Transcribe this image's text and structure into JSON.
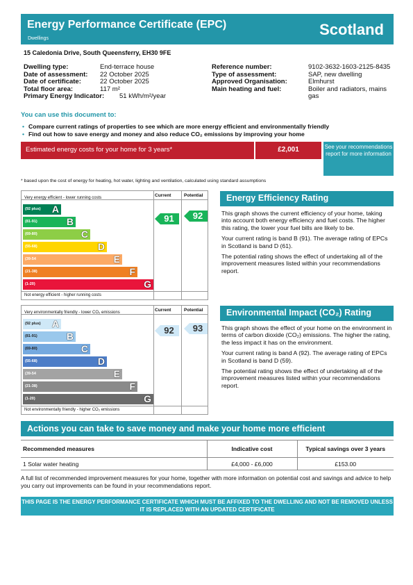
{
  "header": {
    "title": "Energy Performance Certificate (EPC)",
    "subtitle": "Dwellings",
    "country": "Scotland"
  },
  "address": "15 Caledonia Drive, South Queensferry, EH30 9FE",
  "details_left": [
    {
      "k": "Dwelling type:",
      "v": "End-terrace house"
    },
    {
      "k": "Date of assessment:",
      "v": "22 October 2025"
    },
    {
      "k": "Date of certificate:",
      "v": "22 October 2025"
    },
    {
      "k": "Total floor area:",
      "v": "117 m²"
    },
    {
      "k": "Primary Energy Indicator:",
      "v": "51 kWh/m²/year"
    }
  ],
  "details_right": [
    {
      "k": "Reference number:",
      "v": "9102-3632-1603-2125-8435"
    },
    {
      "k": "Type of assessment:",
      "v": "SAP, new dwelling"
    },
    {
      "k": "Approved Organisation:",
      "v": "Elmhurst"
    },
    {
      "k": "Main heating and fuel:",
      "v": "Boiler and radiators, mains gas"
    }
  ],
  "use_title": "You can use this document to:",
  "bullets": [
    "Compare current ratings of properties to see which are more energy efficient and environmentally friendly",
    "Find out how to save energy and money and also reduce CO₂ emissions by improving your home"
  ],
  "cost": {
    "label": "Estimated energy costs for your home for 3 years*",
    "value": "£2,001",
    "see_box": "See your recommendations report for more information"
  },
  "footnote": "* based upon the cost of energy for heating, hot water, lighting and ventilation, calculated using standard assumptions",
  "ee_chart": {
    "top_label": "Very energy efficient - lower running costs",
    "bottom_label": "Not energy efficient - higher running costs",
    "col_current": "Current",
    "col_potential": "Potential",
    "bands": [
      {
        "range": "(92 plus)",
        "letter": "A",
        "color": "#008054"
      },
      {
        "range": "(81-91)",
        "letter": "B",
        "color": "#19b459"
      },
      {
        "range": "(69-80)",
        "letter": "C",
        "color": "#8dce46"
      },
      {
        "range": "(55-68)",
        "letter": "D",
        "color": "#ffd500"
      },
      {
        "range": "(39-54",
        "letter": "E",
        "color": "#fcaa65"
      },
      {
        "range": "(21-38)",
        "letter": "F",
        "color": "#ef8023"
      },
      {
        "range": "(1-20)",
        "letter": "G",
        "color": "#e9153b"
      }
    ],
    "current": "91",
    "potential": "92"
  },
  "ei_chart": {
    "top_label": "Very environmentally friendly - lower CO₂ emissions",
    "bottom_label": "Not environmentally friendly - higher CO₂ emissions",
    "col_current": "Current",
    "col_potential": "Potential",
    "bands": [
      {
        "range": "(92 plus)",
        "letter": "A",
        "color": "#cfe8f7"
      },
      {
        "range": "(81-91)",
        "letter": "B",
        "color": "#9ac8ec"
      },
      {
        "range": "(69-80)",
        "letter": "C",
        "color": "#75a9df"
      },
      {
        "range": "(55-68)",
        "letter": "D",
        "color": "#4d7dc7"
      },
      {
        "range": "(39-54",
        "letter": "E",
        "color": "#a3a3a3"
      },
      {
        "range": "(21-38)",
        "letter": "F",
        "color": "#8a8a8a"
      },
      {
        "range": "(1-20)",
        "letter": "G",
        "color": "#6b6b6b"
      }
    ],
    "current": "92",
    "potential": "93"
  },
  "ee_panel": {
    "title": "Energy Efficiency Rating",
    "p1": "This graph shows the current efficiency of your home, taking into account both energy efficiency and fuel costs. The higher this rating, the lower your fuel bills are likely to be.",
    "p2": "Your current rating is band B (91). The average rating of EPCs in Scotland is band D (61).",
    "p3": "The potential rating shows the effect of undertaking all of the improvement measures listed within your recommendations report."
  },
  "ei_panel": {
    "title": "Environmental Impact (CO₂) Rating",
    "p1": "This graph shows the effect of your home on the environment in terms of carbon dioxide (CO₂) emissions. The higher the rating, the less impact it has on the environment.",
    "p2": "Your current rating is band A (92). The average rating of EPCs in Scotland is band D (59).",
    "p3": "The potential rating shows the effect of undertaking all of the improvement measures listed within your recommendations report."
  },
  "actions": {
    "title": "Actions you can take to save money and make your home more efficient",
    "headers": [
      "Recommended measures",
      "Indicative cost",
      "Typical savings over 3 years"
    ],
    "rows": [
      [
        "1 Solar water heating",
        "£4,000 - £6,000",
        "£153.00"
      ]
    ]
  },
  "final_note": "A full list of recommended improvement measures for your home, together with more information on potential cost and savings and advice to help you carry out improvements can be found in your recommendations report.",
  "warning": "THIS PAGE IS THE ENERGY PERFORMANCE CERTIFICATE WHICH MUST BE AFFIXED TO THE DWELLING AND NOT BE REMOVED UNLESS IT IS REPLACED WITH AN UPDATED CERTIFICATE"
}
